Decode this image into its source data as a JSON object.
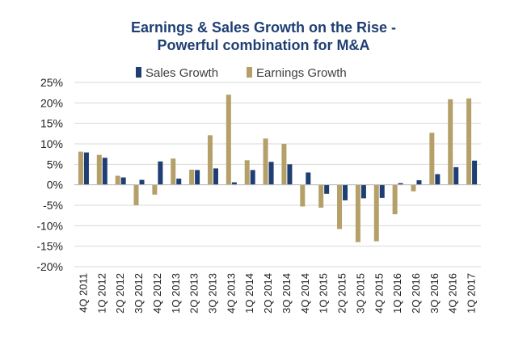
{
  "chart_data": {
    "type": "bar",
    "title": "Earnings & Sales Growth on the Rise -",
    "subtitle": "Powerful combination for M&A",
    "xlabel": "",
    "ylabel": "",
    "ylim": [
      -20,
      25
    ],
    "yticks": [
      -20,
      -15,
      -10,
      -5,
      0,
      5,
      10,
      15,
      20,
      25
    ],
    "ytick_suffix": "%",
    "grid": true,
    "legend_position": "top",
    "categories": [
      "4Q 2011",
      "1Q 2012",
      "2Q 2012",
      "3Q 2012",
      "4Q 2012",
      "1Q 2013",
      "2Q 2013",
      "3Q 2013",
      "4Q 2013",
      "1Q 2014",
      "2Q 2014",
      "3Q 2014",
      "4Q 2014",
      "1Q 2015",
      "2Q 2015",
      "3Q 2015",
      "4Q 2015",
      "1Q 2016",
      "2Q 2016",
      "3Q 2016",
      "4Q 2016",
      "1Q 2017"
    ],
    "series": [
      {
        "name": "Earnings Growth",
        "color": "#b5a06a",
        "values": [
          8.1,
          7.3,
          2.2,
          -5.0,
          -2.4,
          6.4,
          3.7,
          12.1,
          22.0,
          6.0,
          11.3,
          10.0,
          -5.3,
          -5.6,
          -10.8,
          -14.0,
          -13.8,
          -7.2,
          -1.6,
          12.7,
          20.9,
          21.1
        ]
      },
      {
        "name": "Sales Growth",
        "color": "#1f3f73",
        "values": [
          7.9,
          6.6,
          1.8,
          1.2,
          5.7,
          1.5,
          3.6,
          4.0,
          0.6,
          3.6,
          5.6,
          5.0,
          3.0,
          -2.2,
          -3.8,
          -3.3,
          -3.2,
          0.4,
          1.1,
          2.6,
          4.3,
          5.9
        ]
      }
    ],
    "legend_order": [
      "Sales Growth",
      "Earnings Growth"
    ]
  }
}
